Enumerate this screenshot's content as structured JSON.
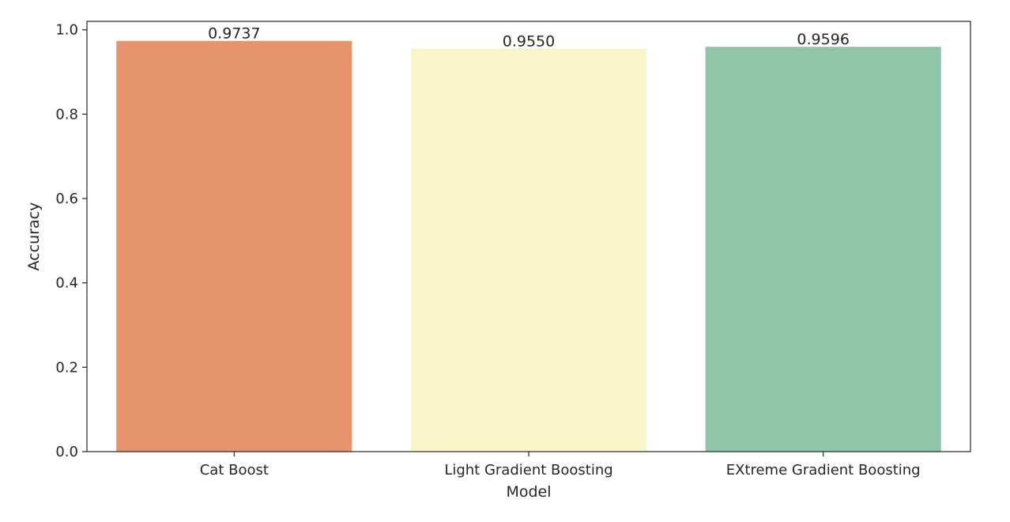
{
  "chart_data": {
    "type": "bar",
    "title": "",
    "xlabel": "Model",
    "ylabel": "Accuracy",
    "categories": [
      "Cat Boost",
      "Light Gradient Boosting",
      "EXtreme Gradient Boosting"
    ],
    "values": [
      0.9737,
      0.955,
      0.9596
    ],
    "value_labels": [
      "0.9737",
      "0.9550",
      "0.9596"
    ],
    "bar_colors": [
      "#e6946b",
      "#f8f5c9",
      "#8fc6a8"
    ],
    "ylim": [
      0,
      1.02
    ],
    "yticks": [
      0.0,
      0.2,
      0.4,
      0.6,
      0.8,
      1.0
    ],
    "ytick_labels": [
      "0.0",
      "0.2",
      "0.4",
      "0.6",
      "0.8",
      "1.0"
    ],
    "grid": false,
    "legend": "none"
  }
}
